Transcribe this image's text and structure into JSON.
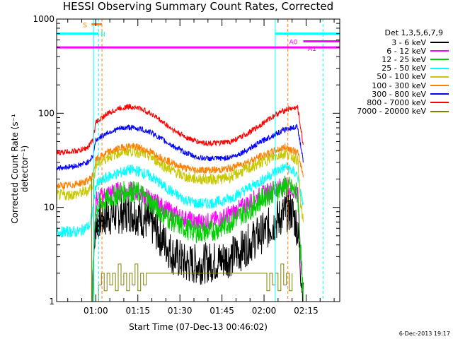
{
  "chart_data": {
    "type": "line",
    "title": "HESSI Observing Summary Count Rates, Corrected",
    "xlabel": "Start Time (07-Dec-13 00:46:02)",
    "ylabel": "Corrected Count Rate (s⁻¹ detector⁻¹)",
    "yscale": "log",
    "xlim": [
      "00:46:02",
      "02:27:00"
    ],
    "ylim": [
      1,
      1000
    ],
    "x_ticks": [
      "01:00",
      "01:15",
      "01:30",
      "01:45",
      "02:00",
      "02:15"
    ],
    "y_ticks": [
      "1",
      "10",
      "100",
      "1000"
    ],
    "legend_title": "Det 1,3,5,6,7,9",
    "legend_position": "right",
    "series": [
      {
        "name": "3 - 6 keV",
        "color": "#000000",
        "x_min": [
          58.5,
          60,
          64,
          68,
          72,
          76,
          80,
          84,
          88,
          90,
          92,
          95,
          97,
          100,
          104,
          108,
          112,
          116,
          120,
          124,
          126,
          128,
          130,
          132,
          134
        ],
        "y": [
          1.0,
          7,
          8,
          8.5,
          9,
          8,
          6.5,
          4.5,
          3,
          2.8,
          2.5,
          2.5,
          2.5,
          2.6,
          2.7,
          3,
          3.5,
          4.5,
          5.5,
          7,
          8,
          9,
          9,
          6,
          1.0
        ]
      },
      {
        "name": "6 - 12 keV",
        "color": "#ff00ff",
        "x_min": [
          58.5,
          60,
          64,
          68,
          72,
          76,
          80,
          84,
          88,
          92,
          96,
          100,
          104,
          108,
          112,
          116,
          120,
          124,
          128,
          132,
          134
        ],
        "y": [
          1.0,
          12,
          14,
          15,
          15,
          14,
          12,
          10,
          8.5,
          7.5,
          7,
          7,
          7.5,
          8.5,
          10,
          12,
          14,
          16,
          17,
          14,
          1.0
        ]
      },
      {
        "name": "12 - 25 keV",
        "color": "#00d000",
        "x_min": [
          58.5,
          60,
          64,
          68,
          72,
          76,
          80,
          84,
          88,
          92,
          96,
          100,
          104,
          108,
          112,
          116,
          120,
          124,
          128,
          132,
          134
        ],
        "y": [
          1.0,
          10,
          12,
          14,
          15,
          14,
          11,
          8.5,
          7,
          6,
          5.5,
          5.5,
          6,
          7,
          8.5,
          10,
          13,
          15,
          17,
          14,
          1.0
        ]
      },
      {
        "name": "25 - 50 keV",
        "color": "#00ffff",
        "x_min": [
          46,
          50,
          54,
          56,
          58,
          59,
          60,
          64,
          68,
          72,
          76,
          80,
          84,
          88,
          92,
          96,
          100,
          104,
          108,
          112,
          116,
          120,
          124,
          128,
          132,
          134
        ],
        "y": [
          5.5,
          5.5,
          5.5,
          6,
          6.5,
          10,
          17,
          21,
          23,
          25,
          24,
          21,
          17,
          14,
          12,
          11,
          11,
          11.5,
          12.5,
          14.5,
          17,
          20,
          24,
          27,
          22,
          10
        ]
      },
      {
        "name": "50 - 100 keV",
        "color": "#c8c800",
        "x_min": [
          46,
          50,
          54,
          57,
          59,
          60,
          64,
          68,
          72,
          76,
          80,
          84,
          88,
          92,
          96,
          100,
          104,
          108,
          112,
          116,
          120,
          124,
          128,
          132,
          133,
          134
        ],
        "y": [
          13.5,
          13.5,
          14,
          15,
          18,
          28,
          34,
          38,
          40,
          38,
          34,
          28,
          24,
          21,
          20,
          20,
          20,
          21,
          24,
          27,
          31,
          35,
          38,
          32,
          11,
          7
        ]
      },
      {
        "name": "100 - 300 keV",
        "color": "#ff8000",
        "x_min": [
          46,
          50,
          54,
          57,
          59,
          60,
          64,
          68,
          72,
          76,
          80,
          84,
          88,
          92,
          96,
          100,
          104,
          108,
          112,
          116,
          120,
          124,
          128,
          132,
          134
        ],
        "y": [
          17,
          17,
          18,
          19,
          22,
          32,
          38,
          42,
          45,
          43,
          38,
          33,
          29,
          26,
          25,
          25,
          25,
          26,
          29,
          32,
          36,
          40,
          44,
          38,
          22
        ]
      },
      {
        "name": "300 - 800 keV",
        "color": "#0000ff",
        "x_min": [
          46,
          50,
          54,
          57,
          59,
          60,
          64,
          68,
          72,
          76,
          80,
          84,
          88,
          92,
          96,
          100,
          104,
          108,
          112,
          116,
          120,
          124,
          128,
          132,
          134
        ],
        "y": [
          26,
          27,
          28,
          30,
          35,
          52,
          62,
          68,
          71,
          68,
          62,
          52,
          44,
          38,
          34,
          33,
          33,
          34,
          38,
          44,
          52,
          60,
          68,
          72,
          30
        ]
      },
      {
        "name": "800 - 7000 keV",
        "color": "#ff0000",
        "x_min": [
          46,
          50,
          54,
          57,
          59,
          60,
          64,
          68,
          72,
          76,
          80,
          84,
          88,
          92,
          96,
          100,
          104,
          108,
          112,
          116,
          120,
          124,
          128,
          132,
          134
        ],
        "y": [
          38,
          39,
          40,
          43,
          52,
          80,
          98,
          112,
          118,
          112,
          98,
          80,
          65,
          56,
          50,
          48,
          48,
          50,
          56,
          66,
          80,
          96,
          110,
          115,
          45
        ]
      },
      {
        "name": "7000 - 20000 keV",
        "color": "#808000",
        "x_min": [
          58,
          58.5,
          59,
          59.3,
          60,
          61,
          62,
          63,
          64,
          65,
          66,
          67,
          68,
          69,
          70,
          71,
          72,
          73,
          74,
          75,
          76,
          77,
          78,
          120,
          121,
          122,
          123,
          124,
          125,
          126,
          127,
          128,
          129,
          130
        ],
        "y": [
          1.0,
          20,
          20,
          1.0,
          1.0,
          1.5,
          2,
          1.3,
          2,
          1.5,
          2,
          1.3,
          2.5,
          1.5,
          2,
          1.3,
          2,
          1.5,
          2.5,
          1.3,
          2,
          1.5,
          2,
          2,
          1.3,
          2,
          1.5,
          2,
          1.3,
          2.5,
          1.5,
          2,
          1.3,
          2
        ]
      }
    ],
    "markers": {
      "vertical_lines": [
        {
          "x_min": 59.2,
          "color": "#00ffff",
          "style": "solid"
        },
        {
          "x_min": 61.0,
          "color": "#00ffff",
          "style": "dashed"
        },
        {
          "x_min": 62.2,
          "color": "#ff8000",
          "style": "dashed"
        },
        {
          "x_min": 124.0,
          "color": "#00ffff",
          "style": "solid"
        },
        {
          "x_min": 128.5,
          "color": "#ff8000",
          "style": "dashed"
        },
        {
          "x_min": 141.0,
          "color": "#00ffff",
          "style": "dashed"
        }
      ],
      "bars": [
        {
          "label": "S",
          "label_color": "#ff8000",
          "color": "#ff8000",
          "x_from": 58.5,
          "x_to": 62.2,
          "y": 880
        },
        {
          "label": "N",
          "label_color": "#00ffff",
          "color": "#00ffff",
          "x_from": 46.0,
          "x_to": 61.0,
          "y": 700
        },
        {
          "label": "",
          "label_color": "#00ffff",
          "color": "#00ffff",
          "x_from": 124.0,
          "x_to": 147.0,
          "y": 700
        },
        {
          "label": "A0",
          "label_color": "#ff00ff",
          "color": "#ff00ff",
          "x_from": 134.0,
          "x_to": 147.0,
          "y": 580
        },
        {
          "label": "A1",
          "label_color": "#ff00ff",
          "color": "#ff00ff",
          "x_from": 46.0,
          "x_to": 147.0,
          "y": 500
        }
      ]
    }
  },
  "footer": {
    "datestamp": "6-Dec-2013 19:17"
  }
}
